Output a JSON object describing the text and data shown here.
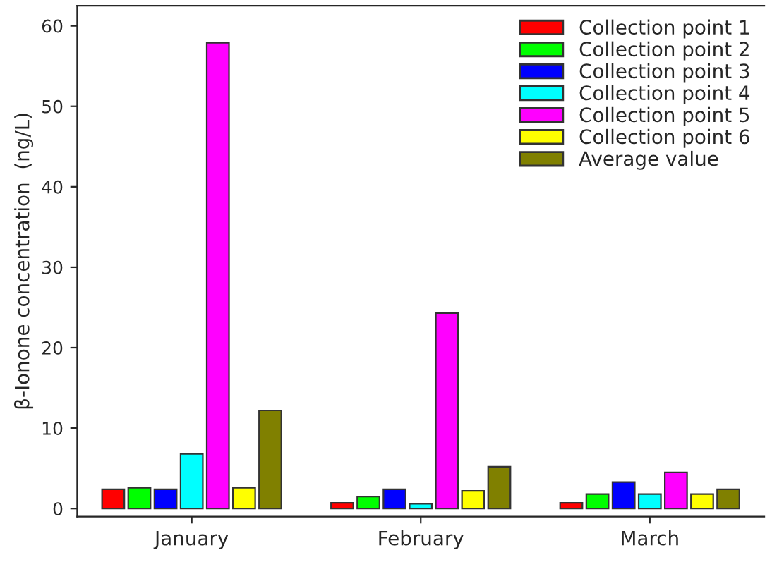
{
  "chart_data": {
    "type": "bar",
    "ylabel": "β-Ionone concentration  (ng/L)",
    "categories": [
      "January",
      "February",
      "March"
    ],
    "series": [
      {
        "name": "Collection point 1",
        "color": "#ff0000",
        "values": [
          2.4,
          0.7,
          0.7
        ]
      },
      {
        "name": "Collection point 2",
        "color": "#00ff00",
        "values": [
          2.6,
          1.5,
          1.8
        ]
      },
      {
        "name": "Collection point 3",
        "color": "#0000ff",
        "values": [
          2.4,
          2.4,
          3.3
        ]
      },
      {
        "name": "Collection point 4",
        "color": "#00ffff",
        "values": [
          6.8,
          0.6,
          1.8
        ]
      },
      {
        "name": "Collection point 5",
        "color": "#ff00ff",
        "values": [
          57.9,
          24.3,
          4.5
        ]
      },
      {
        "name": "Collection point 6",
        "color": "#ffff00",
        "values": [
          2.6,
          2.2,
          1.8
        ]
      },
      {
        "name": "Average value",
        "color": "#808000",
        "values": [
          12.2,
          5.2,
          2.4
        ]
      }
    ],
    "ylim": [
      -1,
      62.5
    ],
    "yticks": [
      0,
      10,
      20,
      30,
      40,
      50,
      60
    ],
    "grid": false,
    "legend": "top right"
  }
}
